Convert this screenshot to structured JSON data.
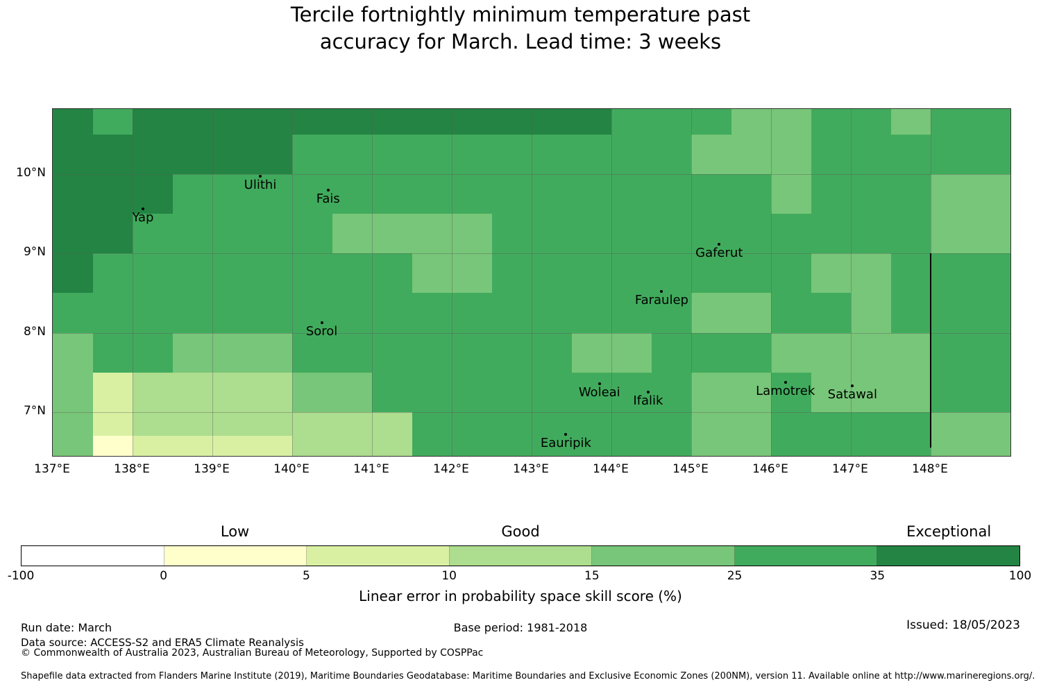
{
  "title": {
    "line1": "Tercile fortnightly minimum temperature past",
    "line2": "accuracy for March. Lead time: 3 weeks"
  },
  "chart_data": {
    "type": "heatmap",
    "title": "Tercile fortnightly minimum temperature past accuracy for March. Lead time: 3 weeks",
    "lon_range": [
      137.0,
      149.0
    ],
    "lat_range": [
      6.45,
      10.82
    ],
    "x_tick_lons": [
      137,
      138,
      139,
      140,
      141,
      142,
      143,
      144,
      145,
      146,
      147,
      148
    ],
    "x_tick_labels": [
      "137°E",
      "138°E",
      "139°E",
      "140°E",
      "141°E",
      "142°E",
      "143°E",
      "144°E",
      "145°E",
      "146°E",
      "147°E",
      "148°E"
    ],
    "y_tick_lats": [
      10,
      9,
      8,
      7
    ],
    "y_tick_labels": [
      "10°N",
      "9°N",
      "8°N",
      "7°N"
    ],
    "bin_edges": [
      -100,
      0,
      5,
      10,
      15,
      25,
      35,
      100
    ],
    "bin_colors": [
      "#ffffff",
      "#ffffcc",
      "#d9f0a3",
      "#addd8e",
      "#78c679",
      "#41ab5d",
      "#238443"
    ],
    "grid": {
      "lon_start": 137.0,
      "lon_step": 0.5,
      "n_cols": 24,
      "row_lat_edges": [
        10.82,
        10.5,
        10.0,
        9.5,
        9.0,
        8.5,
        8.0,
        7.5,
        7.0,
        6.7,
        6.45
      ],
      "rows": [
        [
          6,
          5,
          6,
          6,
          6,
          6,
          6,
          6,
          6,
          6,
          6,
          6,
          6,
          6,
          5,
          5,
          5,
          4,
          4,
          5,
          5,
          4,
          5,
          5
        ],
        [
          6,
          6,
          6,
          6,
          6,
          6,
          5,
          5,
          5,
          5,
          5,
          5,
          5,
          5,
          5,
          5,
          4,
          4,
          4,
          5,
          5,
          5,
          5,
          5
        ],
        [
          6,
          6,
          6,
          5,
          5,
          5,
          5,
          5,
          5,
          5,
          5,
          5,
          5,
          5,
          5,
          5,
          5,
          5,
          4,
          5,
          5,
          5,
          4,
          4
        ],
        [
          6,
          6,
          5,
          5,
          5,
          5,
          5,
          4,
          4,
          4,
          4,
          5,
          5,
          5,
          5,
          5,
          5,
          5,
          5,
          5,
          5,
          5,
          4,
          4
        ],
        [
          6,
          5,
          5,
          5,
          5,
          5,
          5,
          5,
          5,
          4,
          4,
          5,
          5,
          5,
          5,
          5,
          5,
          5,
          5,
          4,
          4,
          5,
          5,
          5
        ],
        [
          5,
          5,
          5,
          5,
          5,
          5,
          5,
          5,
          5,
          5,
          5,
          5,
          5,
          5,
          5,
          5,
          4,
          4,
          5,
          5,
          4,
          5,
          5,
          5
        ],
        [
          4,
          5,
          5,
          4,
          4,
          4,
          5,
          5,
          5,
          5,
          5,
          5,
          5,
          4,
          4,
          5,
          5,
          5,
          4,
          4,
          4,
          4,
          5,
          5
        ],
        [
          4,
          2,
          3,
          3,
          3,
          3,
          4,
          4,
          5,
          5,
          5,
          5,
          5,
          5,
          5,
          5,
          4,
          4,
          5,
          4,
          4,
          4,
          5,
          5
        ],
        [
          4,
          2,
          3,
          3,
          3,
          3,
          3,
          3,
          3,
          5,
          5,
          5,
          5,
          5,
          5,
          5,
          4,
          4,
          5,
          5,
          5,
          5,
          4,
          4
        ],
        [
          4,
          1,
          2,
          2,
          2,
          2,
          3,
          3,
          3,
          5,
          5,
          5,
          5,
          5,
          5,
          5,
          4,
          4,
          5,
          5,
          5,
          5,
          4,
          4
        ]
      ]
    },
    "places": [
      {
        "name": "Ulithi",
        "lon": 139.6,
        "lat": 9.97
      },
      {
        "name": "Fais",
        "lon": 140.45,
        "lat": 9.8
      },
      {
        "name": "Yap",
        "lon": 138.13,
        "lat": 9.56
      },
      {
        "name": "Gaferut",
        "lon": 145.35,
        "lat": 9.12
      },
      {
        "name": "Faraulep",
        "lon": 144.63,
        "lat": 8.52
      },
      {
        "name": "Sorol",
        "lon": 140.37,
        "lat": 8.13
      },
      {
        "name": "Woleai",
        "lon": 143.85,
        "lat": 7.36
      },
      {
        "name": "Ifalik",
        "lon": 144.46,
        "lat": 7.25
      },
      {
        "name": "Lamotrek",
        "lon": 146.18,
        "lat": 7.38
      },
      {
        "name": "Satawal",
        "lon": 147.02,
        "lat": 7.33
      },
      {
        "name": "Eauripik",
        "lon": 143.43,
        "lat": 6.72
      }
    ],
    "boundary_line": {
      "lon": 148.0,
      "lat_from": 6.55,
      "lat_to": 9.0
    },
    "colorbar": {
      "tick_labels": [
        "-100",
        "0",
        "5",
        "10",
        "15",
        "25",
        "35",
        "100"
      ],
      "segment_colors": [
        "#ffffff",
        "#ffffcc",
        "#d9f0a3",
        "#addd8e",
        "#78c679",
        "#41ab5d",
        "#238443"
      ],
      "category_labels": [
        {
          "label": "Low",
          "segment_index": 1
        },
        {
          "label": "Good",
          "segment_index": 3
        },
        {
          "label": "Exceptional",
          "segment_index": 6
        }
      ],
      "axis_label": "Linear error in probability space skill score (%)"
    }
  },
  "footer": {
    "run_date": "Run date: March",
    "base_period": "Base period: 1981-2018",
    "issued": "Issued: 18/05/2023",
    "data_source": "Data source: ACCESS-S2 and ERA5 Climate Reanalysis",
    "copyright": "© Commonwealth of Australia 2023, Australian Bureau of Meteorology, Supported by COSPPac",
    "shapefile_note": "Shapefile data extracted from Flanders Marine Institute (2019), Maritime Boundaries Geodatabase: Maritime Boundaries and Exclusive Economic Zones (200NM), version 11. Available online at http://www.marineregions.org/."
  }
}
